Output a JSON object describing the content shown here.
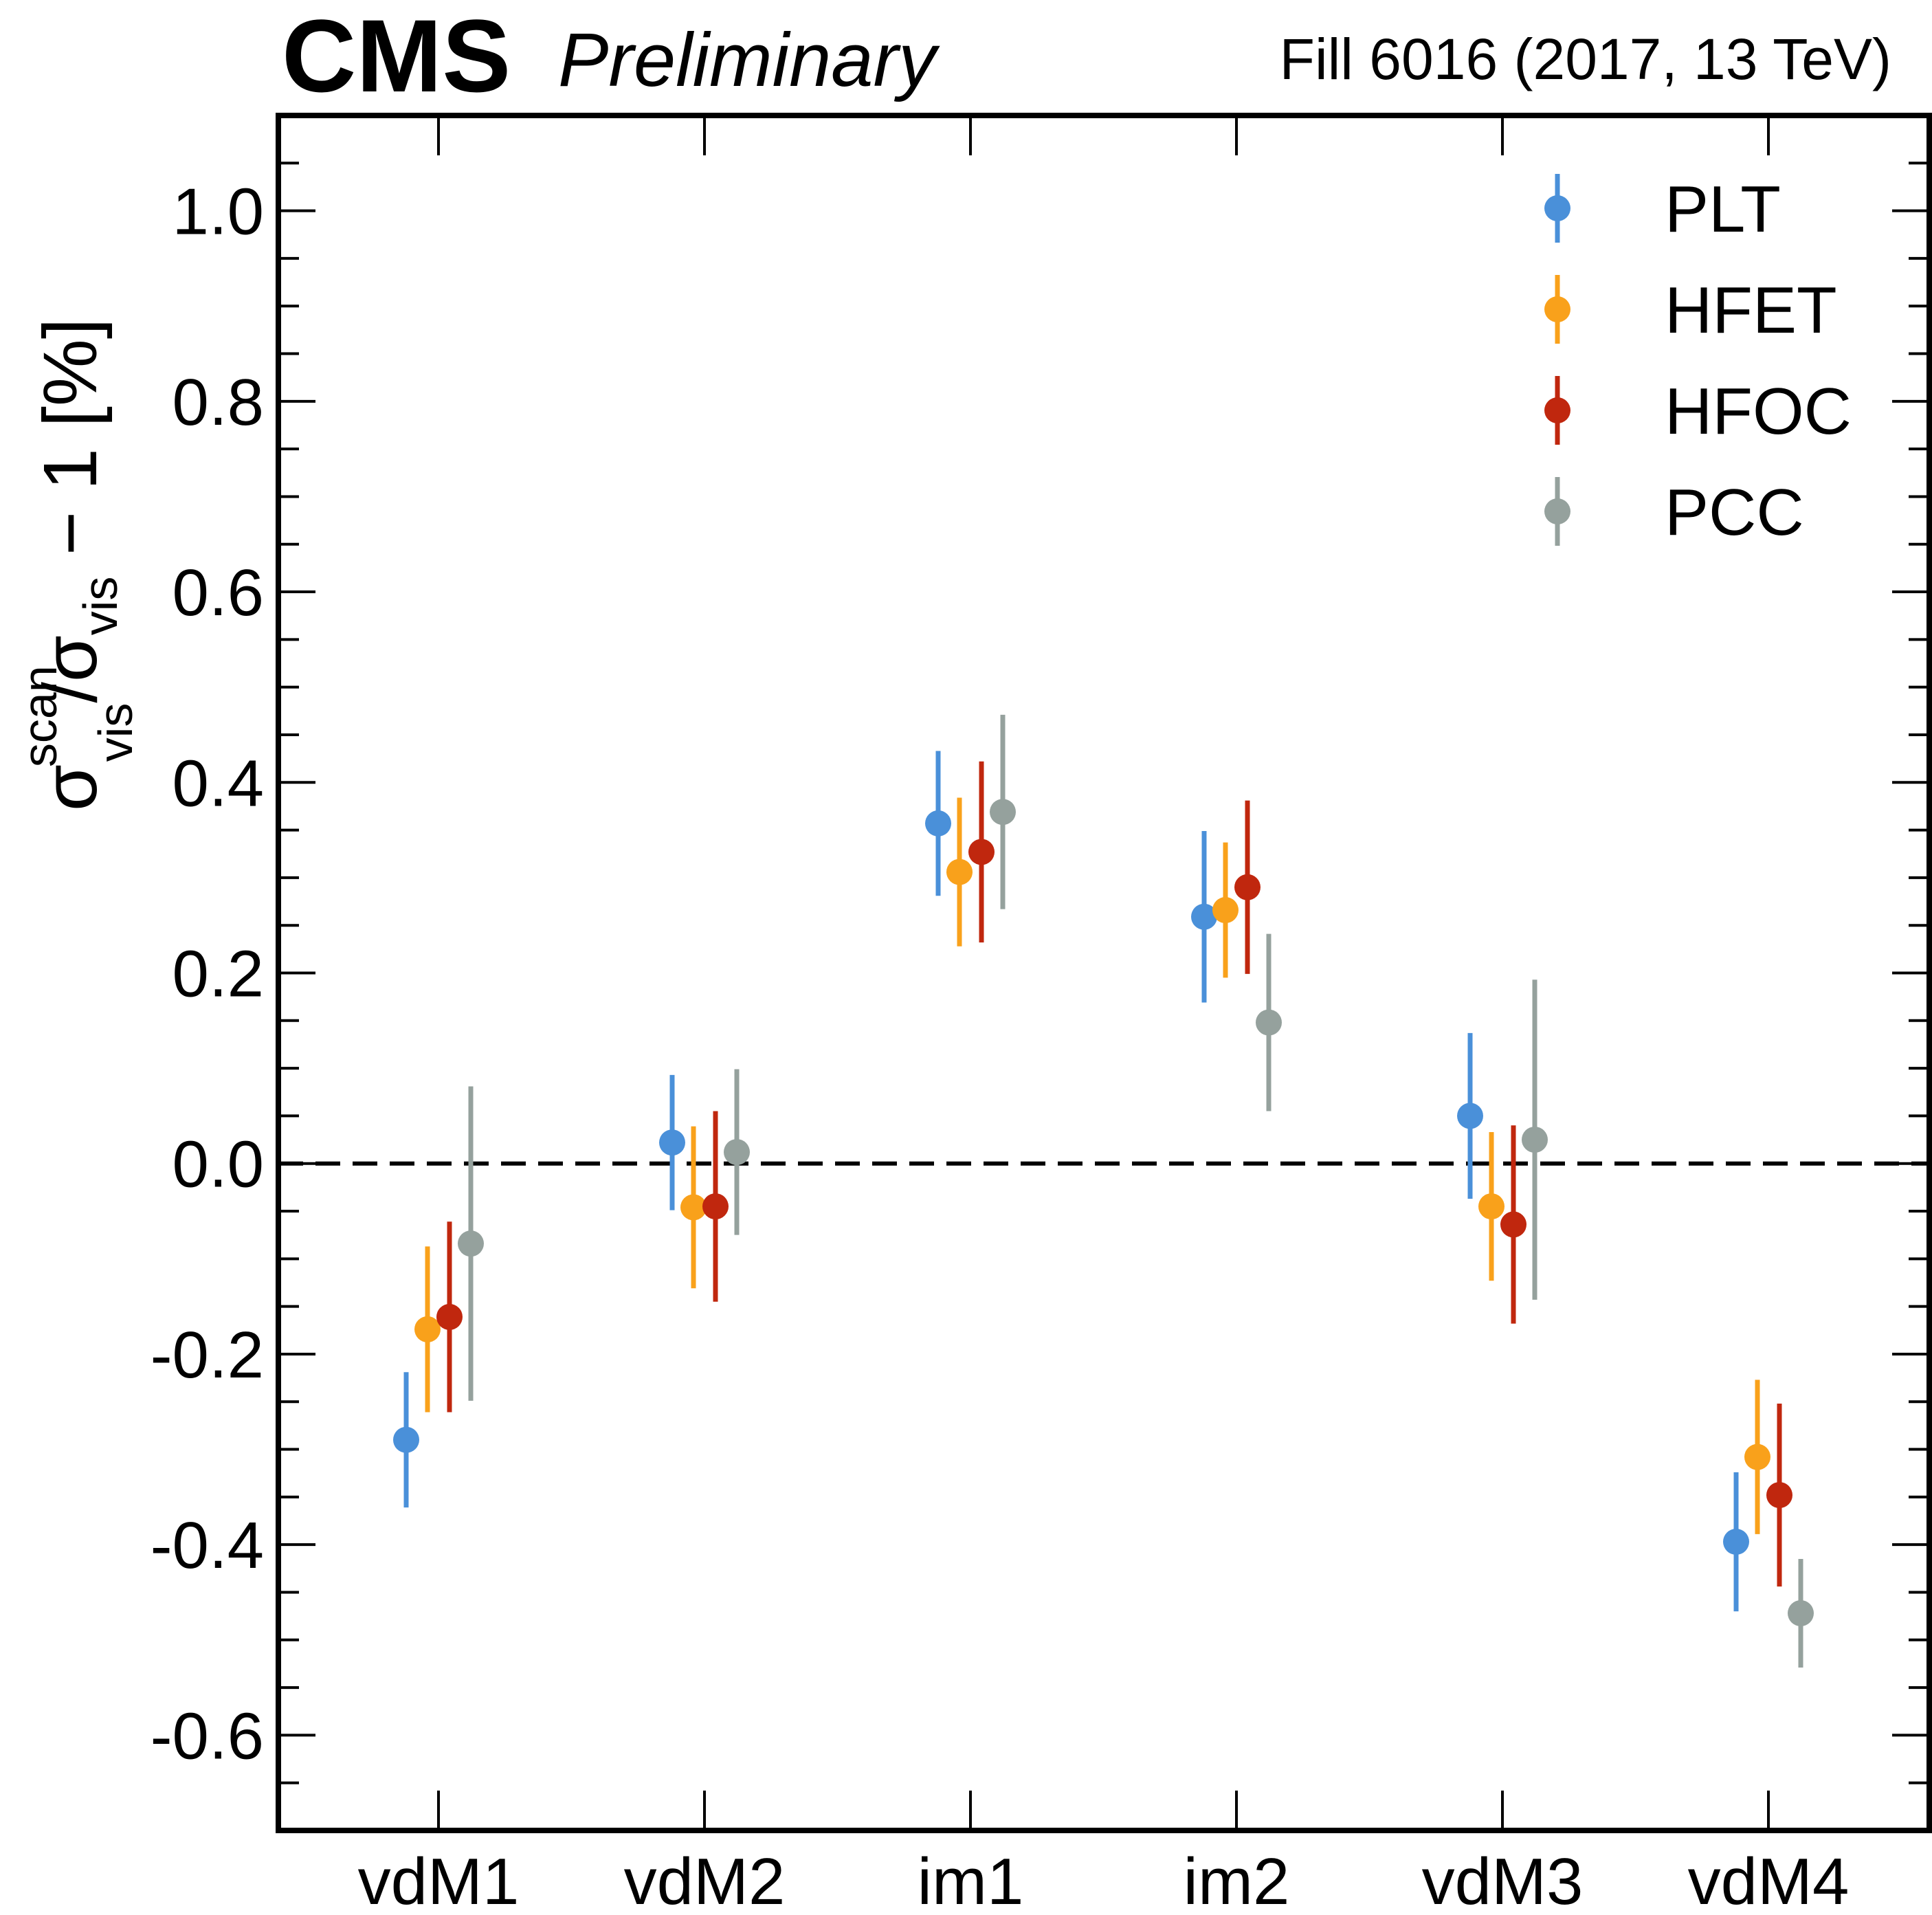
{
  "header": {
    "experiment": "CMS",
    "status": "Preliminary",
    "fill_info": "Fill 6016 (2017, 13 TeV)"
  },
  "chart_data": {
    "type": "scatter",
    "title": "",
    "xlabel": "",
    "ylabel": "σvis^scan/σvis − 1 [%]",
    "ylabel_parts": {
      "sigma": "σ",
      "sup": "scan",
      "sub": "vis",
      "slash": "/",
      "sigma2": "σ",
      "sub2": "vis",
      "tail": " − 1 [%]"
    },
    "categories": [
      "vdM1",
      "vdM2",
      "im1",
      "im2",
      "vdM3",
      "vdM4"
    ],
    "ylim": [
      -0.7,
      1.1
    ],
    "yticks": [
      {
        "value": 1.0,
        "label": "1.0"
      },
      {
        "value": 0.8,
        "label": "0.8"
      },
      {
        "value": 0.6,
        "label": "0.6"
      },
      {
        "value": 0.4,
        "label": "0.4"
      },
      {
        "value": 0.2,
        "label": "0.2"
      },
      {
        "value": 0.0,
        "label": "0.0"
      },
      {
        "value": -0.2,
        "label": "-0.2"
      },
      {
        "value": -0.4,
        "label": "-0.4"
      },
      {
        "value": -0.6,
        "label": "-0.6"
      }
    ],
    "reference_line": 0.0,
    "legend_position": "top-right",
    "series": [
      {
        "name": "PLT",
        "color": "#4a90d9",
        "values": [
          -0.29,
          0.022,
          0.357,
          0.259,
          0.05,
          -0.397
        ],
        "errors": [
          0.071,
          0.071,
          0.076,
          0.09,
          0.087,
          0.073
        ]
      },
      {
        "name": "HFET",
        "color": "#f9a11b",
        "values": [
          -0.174,
          -0.046,
          0.306,
          0.266,
          -0.045,
          -0.308
        ],
        "errors": [
          0.087,
          0.085,
          0.078,
          0.071,
          0.078,
          0.081
        ]
      },
      {
        "name": "HFOC",
        "color": "#c0270e",
        "values": [
          -0.161,
          -0.045,
          0.327,
          0.29,
          -0.064,
          -0.348
        ],
        "errors": [
          0.1,
          0.1,
          0.095,
          0.091,
          0.104,
          0.096
        ]
      },
      {
        "name": "PCC",
        "color": "#95a19d",
        "values": [
          -0.084,
          0.012,
          0.369,
          0.148,
          0.025,
          -0.472
        ],
        "errors": [
          0.165,
          0.087,
          0.102,
          0.093,
          0.168,
          0.057
        ]
      }
    ]
  }
}
